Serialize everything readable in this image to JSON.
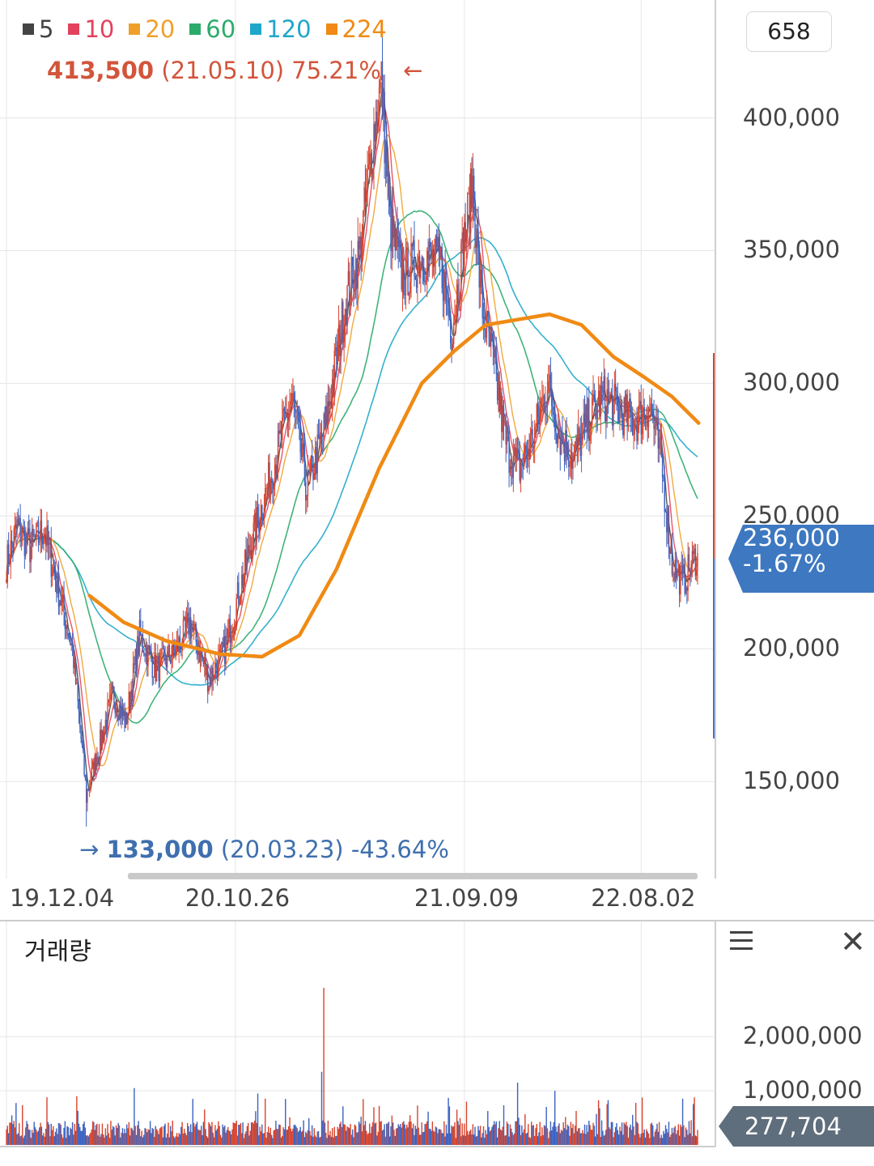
{
  "legend": [
    {
      "label": "5",
      "color": "#444444"
    },
    {
      "label": "10",
      "color": "#e2425c"
    },
    {
      "label": "20",
      "color": "#f0a02a"
    },
    {
      "label": "60",
      "color": "#2bab6b"
    },
    {
      "label": "120",
      "color": "#1fa7c9"
    },
    {
      "label": "224",
      "color": "#f08a14"
    }
  ],
  "count_box": "658",
  "high_marker": {
    "price": "413,500",
    "detail": "(21.05.10) 75.21%",
    "arrow": "←"
  },
  "low_marker": {
    "price": "133,000",
    "detail": "(20.03.23) -43.64%",
    "arrow": "→"
  },
  "current_price": {
    "value": "236,000",
    "change": "-1.67%"
  },
  "volume_panel": {
    "title": "거래량",
    "current_value": "277,704"
  },
  "colors": {
    "up": "#d8442c",
    "down": "#3b62c0",
    "grid": "#e6e6e6"
  },
  "chart_data": [
    {
      "type": "line",
      "title": "",
      "ylim": [
        118000,
        420000
      ],
      "y_ticks": [
        "150,000",
        "200,000",
        "250,000",
        "300,000",
        "350,000",
        "400,000"
      ],
      "y_tick_values": [
        150000,
        200000,
        250000,
        300000,
        350000,
        400000
      ],
      "x_tick_labels": [
        "19.12.04",
        "20.10.26",
        "21.09.09",
        "22.08.02"
      ],
      "x_tick_index": [
        0,
        215,
        430,
        596
      ],
      "n_points": 650,
      "price_anchors": [
        {
          "i": 0,
          "v": 232000
        },
        {
          "i": 10,
          "v": 246000
        },
        {
          "i": 22,
          "v": 238000
        },
        {
          "i": 35,
          "v": 245000
        },
        {
          "i": 50,
          "v": 220000
        },
        {
          "i": 62,
          "v": 200000
        },
        {
          "i": 75,
          "v": 145000
        },
        {
          "i": 85,
          "v": 160000
        },
        {
          "i": 100,
          "v": 183000
        },
        {
          "i": 112,
          "v": 172000
        },
        {
          "i": 125,
          "v": 205000
        },
        {
          "i": 140,
          "v": 192000
        },
        {
          "i": 160,
          "v": 200000
        },
        {
          "i": 172,
          "v": 210000
        },
        {
          "i": 190,
          "v": 188000
        },
        {
          "i": 205,
          "v": 200000
        },
        {
          "i": 230,
          "v": 240000
        },
        {
          "i": 255,
          "v": 275000
        },
        {
          "i": 268,
          "v": 295000
        },
        {
          "i": 282,
          "v": 260000
        },
        {
          "i": 300,
          "v": 285000
        },
        {
          "i": 318,
          "v": 330000
        },
        {
          "i": 332,
          "v": 350000
        },
        {
          "i": 345,
          "v": 395000
        },
        {
          "i": 352,
          "v": 413500
        },
        {
          "i": 360,
          "v": 360000
        },
        {
          "i": 372,
          "v": 340000
        },
        {
          "i": 390,
          "v": 348000
        },
        {
          "i": 408,
          "v": 345000
        },
        {
          "i": 418,
          "v": 320000
        },
        {
          "i": 430,
          "v": 355000
        },
        {
          "i": 438,
          "v": 375000
        },
        {
          "i": 446,
          "v": 330000
        },
        {
          "i": 456,
          "v": 310000
        },
        {
          "i": 470,
          "v": 275000
        },
        {
          "i": 482,
          "v": 268000
        },
        {
          "i": 495,
          "v": 280000
        },
        {
          "i": 508,
          "v": 300000
        },
        {
          "i": 520,
          "v": 280000
        },
        {
          "i": 532,
          "v": 272000
        },
        {
          "i": 545,
          "v": 285000
        },
        {
          "i": 560,
          "v": 295000
        },
        {
          "i": 575,
          "v": 290000
        },
        {
          "i": 590,
          "v": 285000
        },
        {
          "i": 604,
          "v": 292000
        },
        {
          "i": 615,
          "v": 270000
        },
        {
          "i": 625,
          "v": 232000
        },
        {
          "i": 635,
          "v": 225000
        },
        {
          "i": 649,
          "v": 236000
        }
      ],
      "high_index": 352,
      "low": {
        "i": 75,
        "v": 133000
      },
      "ma224_curve": [
        {
          "i": 78,
          "v": 220000
        },
        {
          "i": 110,
          "v": 210000
        },
        {
          "i": 150,
          "v": 203000
        },
        {
          "i": 200,
          "v": 198000
        },
        {
          "i": 240,
          "v": 197000
        },
        {
          "i": 275,
          "v": 205000
        },
        {
          "i": 310,
          "v": 230000
        },
        {
          "i": 350,
          "v": 268000
        },
        {
          "i": 390,
          "v": 300000
        },
        {
          "i": 420,
          "v": 312000
        },
        {
          "i": 450,
          "v": 322000
        },
        {
          "i": 480,
          "v": 324000
        },
        {
          "i": 510,
          "v": 326000
        },
        {
          "i": 540,
          "v": 322000
        },
        {
          "i": 570,
          "v": 310000
        },
        {
          "i": 600,
          "v": 302000
        },
        {
          "i": 625,
          "v": 295000
        },
        {
          "i": 650,
          "v": 285000
        }
      ]
    },
    {
      "type": "bar",
      "title": "거래량",
      "ylim": [
        0,
        2900000
      ],
      "y_ticks": [
        "1,000,000",
        "2,000,000"
      ],
      "y_tick_values": [
        1000000,
        2000000
      ],
      "baseline": 250000,
      "spikes": [
        {
          "i": 66,
          "v": 900000
        },
        {
          "i": 120,
          "v": 1050000
        },
        {
          "i": 175,
          "v": 850000
        },
        {
          "i": 236,
          "v": 950000
        },
        {
          "i": 262,
          "v": 850000
        },
        {
          "i": 298,
          "v": 2900000
        },
        {
          "i": 296,
          "v": 1350000
        },
        {
          "i": 480,
          "v": 1150000
        },
        {
          "i": 515,
          "v": 1000000
        },
        {
          "i": 432,
          "v": 800000
        },
        {
          "i": 350,
          "v": 720000
        }
      ],
      "last_value": 277704
    }
  ]
}
